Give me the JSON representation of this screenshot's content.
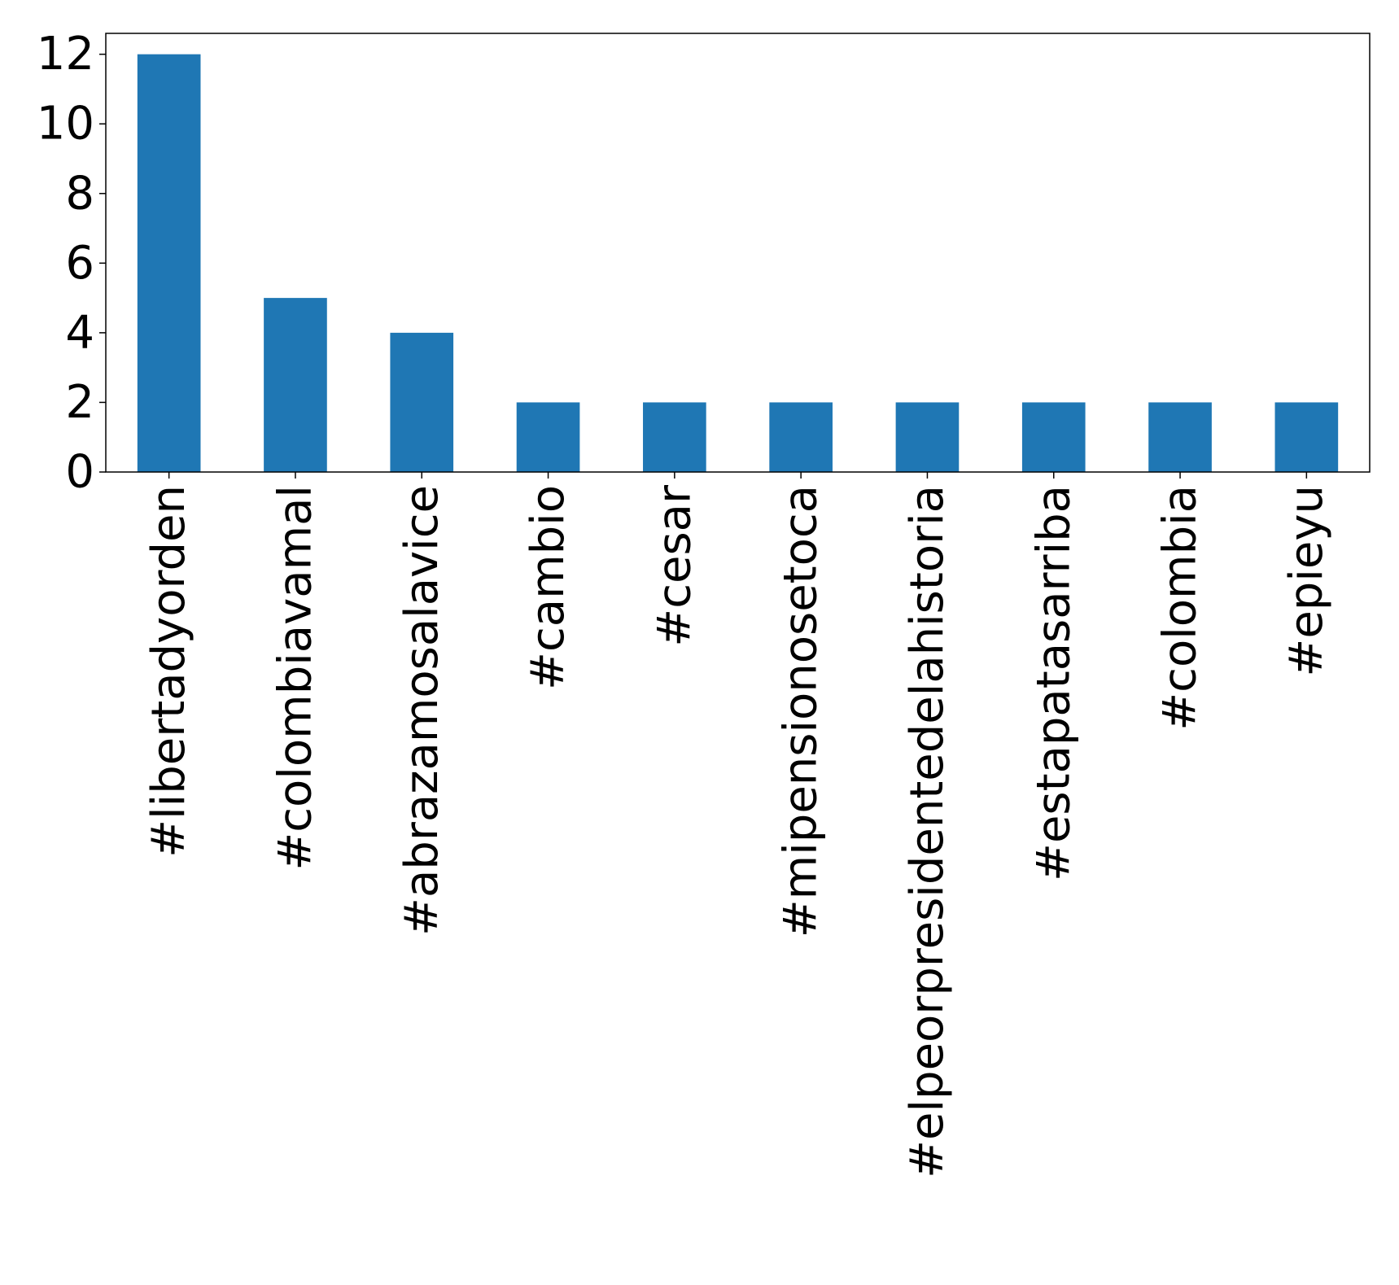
{
  "chart_data": {
    "type": "bar",
    "title": "",
    "xlabel": "",
    "ylabel": "",
    "categories": [
      "#libertadyorden",
      "#colombiavamal",
      "#abrazamosalavice",
      "#cambio",
      "#cesar",
      "#mipensionosetoca",
      "#elpeorpresidentedelahistoria",
      "#estapatasarriba",
      "#colombia",
      "#epieyu"
    ],
    "values": [
      12,
      5,
      4,
      2,
      2,
      2,
      2,
      2,
      2,
      2
    ],
    "ylim": [
      0,
      12.6
    ],
    "yticks": [
      0,
      2,
      4,
      6,
      8,
      10,
      12
    ],
    "grid": false,
    "legend": "none",
    "bar_color": "#1f77b4"
  }
}
